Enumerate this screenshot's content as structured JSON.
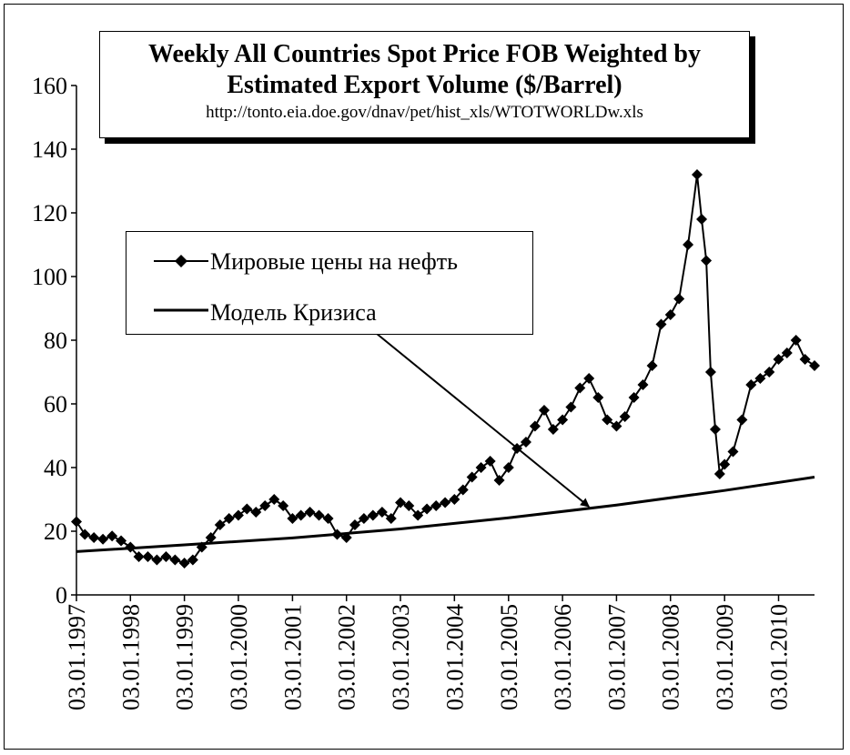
{
  "chart_data": {
    "type": "line",
    "title": "Weekly All Countries Spot Price FOB Weighted by",
    "title_line2": "Estimated Export Volume  ($/Barrel)",
    "subtitle": "http://tonto.eia.doe.gov/dnav/pet/hist_xls/WTOTWORLDw.xls",
    "xlabel": "",
    "ylabel": "",
    "ylim": [
      0,
      160
    ],
    "yticks": [
      "0",
      "20",
      "40",
      "60",
      "80",
      "100",
      "120",
      "140",
      "160"
    ],
    "xlim": [
      "1997-01-03",
      "2010-09-03"
    ],
    "x_tick_labels": [
      "03.01.1997",
      "03.01.1998",
      "03.01.1999",
      "03.01.2000",
      "03.01.2001",
      "03.01.2002",
      "03.01.2003",
      "03.01.2004",
      "03.01.2005",
      "03.01.2006",
      "03.01.2007",
      "03.01.2008",
      "03.01.2009",
      "03.01.2010"
    ],
    "grid": false,
    "legend_placement": "upper-left",
    "series": [
      {
        "name": "Мировые цены на нефть",
        "color": "#000000",
        "marker": "diamond",
        "x": [
          "1997-01-03",
          "1997-03-01",
          "1997-05-01",
          "1997-07-01",
          "1997-09-01",
          "1997-11-01",
          "1998-01-03",
          "1998-03-01",
          "1998-05-01",
          "1998-07-01",
          "1998-09-01",
          "1998-11-01",
          "1999-01-03",
          "1999-03-01",
          "1999-05-01",
          "1999-07-01",
          "1999-09-01",
          "1999-11-01",
          "2000-01-03",
          "2000-03-01",
          "2000-05-01",
          "2000-07-01",
          "2000-09-01",
          "2000-11-01",
          "2001-01-03",
          "2001-03-01",
          "2001-05-01",
          "2001-07-01",
          "2001-09-01",
          "2001-11-01",
          "2002-01-03",
          "2002-03-01",
          "2002-05-01",
          "2002-07-01",
          "2002-09-01",
          "2002-11-01",
          "2003-01-03",
          "2003-03-01",
          "2003-05-01",
          "2003-07-01",
          "2003-09-01",
          "2003-11-01",
          "2004-01-03",
          "2004-03-01",
          "2004-05-01",
          "2004-07-01",
          "2004-09-01",
          "2004-11-01",
          "2005-01-03",
          "2005-03-01",
          "2005-05-01",
          "2005-07-01",
          "2005-09-01",
          "2005-11-01",
          "2006-01-03",
          "2006-03-01",
          "2006-05-01",
          "2006-07-01",
          "2006-09-01",
          "2006-11-01",
          "2007-01-03",
          "2007-03-01",
          "2007-05-01",
          "2007-07-01",
          "2007-09-01",
          "2007-11-01",
          "2008-01-03",
          "2008-03-01",
          "2008-05-01",
          "2008-07-01",
          "2008-08-01",
          "2008-09-01",
          "2008-10-01",
          "2008-11-01",
          "2008-12-01",
          "2009-01-03",
          "2009-03-01",
          "2009-05-01",
          "2009-07-01",
          "2009-09-01",
          "2009-11-01",
          "2010-01-03",
          "2010-03-01",
          "2010-05-01",
          "2010-07-01",
          "2010-09-03"
        ],
        "values": [
          23,
          19,
          18,
          17.5,
          18.5,
          17,
          15,
          12,
          12,
          11,
          12,
          11,
          10,
          11,
          15,
          18,
          22,
          24,
          25,
          27,
          26,
          28,
          30,
          28,
          24,
          25,
          26,
          25,
          24,
          19,
          18,
          22,
          24,
          25,
          26,
          24,
          29,
          28,
          25,
          27,
          28,
          29,
          30,
          33,
          37,
          40,
          42,
          36,
          40,
          46,
          48,
          53,
          58,
          52,
          55,
          59,
          65,
          68,
          62,
          55,
          53,
          56,
          62,
          66,
          72,
          85,
          88,
          93,
          110,
          132,
          118,
          105,
          70,
          52,
          38,
          41,
          45,
          55,
          66,
          68,
          70,
          74,
          76,
          80,
          74,
          72
        ]
      },
      {
        "name": "Модель Кризиса",
        "color": "#000000",
        "marker": "none",
        "x": [
          "1997-01-03",
          "1999-01-03",
          "2001-01-03",
          "2003-01-03",
          "2005-01-03",
          "2007-01-03",
          "2009-01-03",
          "2010-09-03"
        ],
        "values": [
          13.6,
          15.7,
          17.9,
          20.7,
          24.2,
          28.2,
          32.8,
          37.0
        ]
      }
    ],
    "annotations": [
      {
        "type": "arrow",
        "from_label": "Модель Кризиса",
        "to": {
          "x": "2006-07-01",
          "y": 30
        }
      }
    ]
  }
}
